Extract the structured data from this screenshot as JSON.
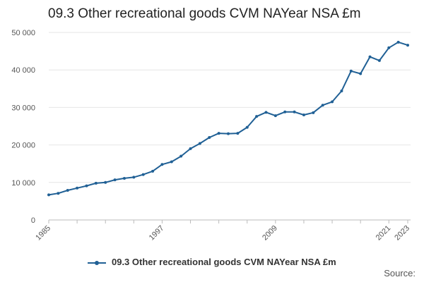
{
  "chart_data": {
    "type": "line",
    "title": "09.3 Other recreational goods CVM NAYear NSA £m",
    "xlabel": "",
    "ylabel": "",
    "xlim": [
      1985,
      2023
    ],
    "ylim": [
      0,
      50000
    ],
    "y_ticks": [
      0,
      10000,
      20000,
      30000,
      40000,
      50000
    ],
    "y_tick_labels": [
      "0",
      "10 000",
      "20 000",
      "30 000",
      "40 000",
      "50 000"
    ],
    "x_ticks": [
      1985,
      1997,
      2009,
      2021,
      2023
    ],
    "x_tick_labels": [
      "1985",
      "1997",
      "2009",
      "2021",
      "2023"
    ],
    "grid": true,
    "legend_position": "bottom-center",
    "colors": {
      "series": "#206095",
      "grid": "#e6e6e6",
      "axis": "#bbbbbb"
    },
    "series": [
      {
        "name": "09.3 Other recreational goods CVM NAYear NSA £m",
        "x": [
          1985,
          1986,
          1987,
          1988,
          1989,
          1990,
          1991,
          1992,
          1993,
          1994,
          1995,
          1996,
          1997,
          1998,
          1999,
          2000,
          2001,
          2002,
          2003,
          2004,
          2005,
          2006,
          2007,
          2008,
          2009,
          2010,
          2011,
          2012,
          2013,
          2014,
          2015,
          2016,
          2017,
          2018,
          2019,
          2020,
          2021,
          2022,
          2023
        ],
        "values": [
          6700,
          7100,
          7900,
          8500,
          9100,
          9800,
          10000,
          10700,
          11100,
          11400,
          12100,
          13000,
          14800,
          15500,
          17000,
          19000,
          20400,
          22000,
          23100,
          23000,
          23100,
          24700,
          27600,
          28700,
          27800,
          28800,
          28800,
          28000,
          28600,
          30600,
          31500,
          34400,
          39700,
          39000,
          43500,
          42500,
          45900,
          47400,
          46600
        ]
      }
    ]
  },
  "legend": {
    "label": "09.3 Other recreational goods CVM NAYear NSA £m"
  },
  "source_label": "Source:"
}
